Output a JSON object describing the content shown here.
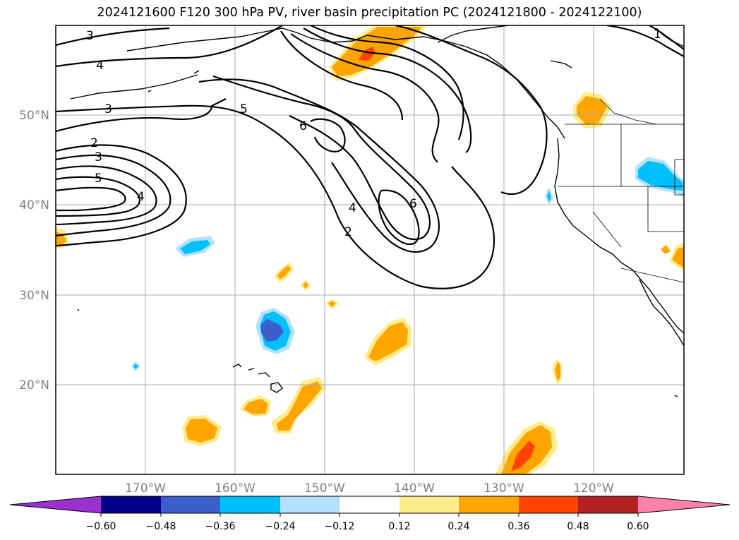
{
  "title": "2024121600 F120 300 hPa PV, river basin precipitation PC (2024121800 - 2024122100)",
  "lon_labels": [
    "170°W",
    "160°W",
    "150°W",
    "140°W",
    "130°W",
    "120°W"
  ],
  "lat_labels": [
    "50°N",
    "40°N",
    "30°N",
    "20°N"
  ],
  "contour_labels": [
    "3",
    "4",
    "3",
    "2",
    "3",
    "5",
    "4",
    "5",
    "6",
    "4",
    "2",
    "6",
    "1"
  ],
  "colorbar": {
    "tick_labels": [
      "−0.60",
      "−0.48",
      "−0.36",
      "−0.24",
      "−0.12",
      "0.12",
      "0.24",
      "0.36",
      "0.48",
      "0.60"
    ],
    "colors": [
      "#9b30d0",
      "#00008b",
      "#3a5fcd",
      "#00bfff",
      "#b0e2ff",
      "#ffffff",
      "#ffec8b",
      "#ffa500",
      "#ff4500",
      "#b22222",
      "#ff82ab"
    ]
  },
  "colors": {
    "gridline": "#a9a9a9",
    "contour": "#000000",
    "pos_light": "#ffec8b",
    "pos_mid": "#ffa500",
    "pos_strong": "#ff4500",
    "neg_light": "#b0e2ff",
    "neg_mid": "#00bfff",
    "neg_strong": "#3a5fcd"
  }
}
